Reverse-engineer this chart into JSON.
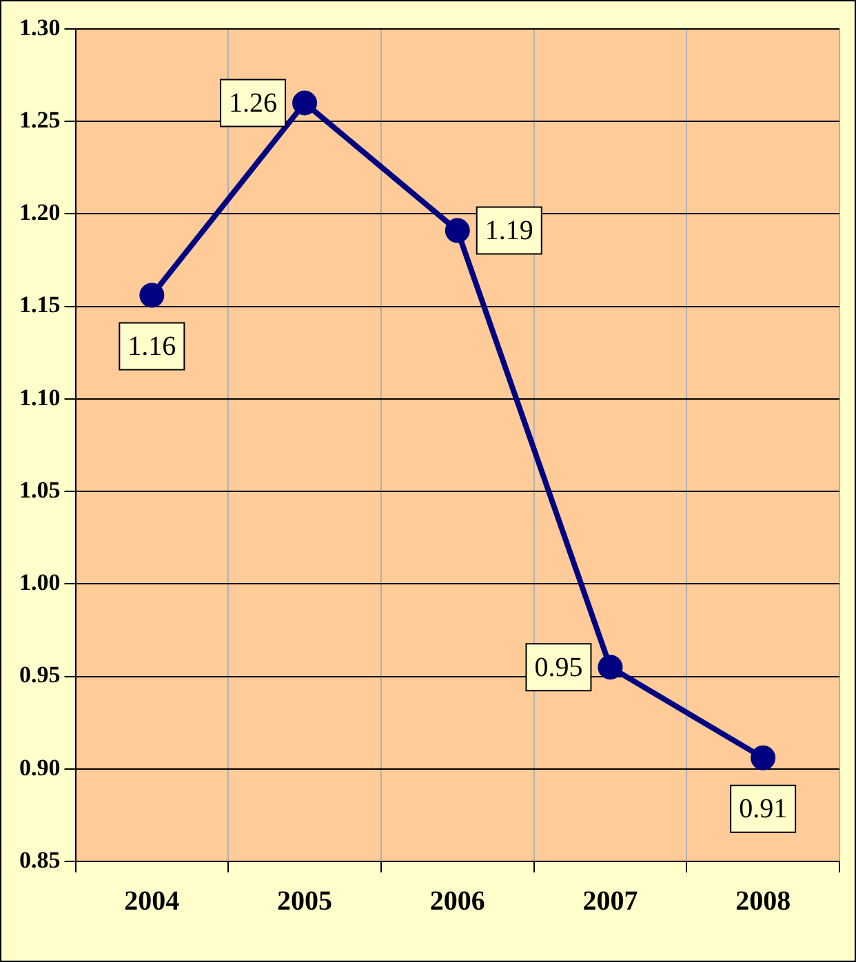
{
  "chart_data": {
    "type": "line",
    "categories": [
      "2004",
      "2005",
      "2006",
      "2007",
      "2008"
    ],
    "values": [
      1.156,
      1.26,
      1.191,
      0.955,
      0.906
    ],
    "value_labels": [
      "1.16",
      "1.26",
      "1.19",
      "0.95",
      "0.91"
    ],
    "color": "#000080",
    "marker": "circle",
    "line_style": "solid",
    "ylim": [
      0.85,
      1.3
    ],
    "yticks": [
      {
        "value": 0.85,
        "label": "0.85"
      },
      {
        "value": 0.9,
        "label": "0.90"
      },
      {
        "value": 0.95,
        "label": "0.95"
      },
      {
        "value": 1.0,
        "label": "1.00"
      },
      {
        "value": 1.05,
        "label": "1.05"
      },
      {
        "value": 1.1,
        "label": "1.10"
      },
      {
        "value": 1.15,
        "label": "1.15"
      },
      {
        "value": 1.2,
        "label": "1.20"
      },
      {
        "value": 1.25,
        "label": "1.25"
      },
      {
        "value": 1.3,
        "label": "1.30"
      }
    ],
    "grid": true
  }
}
